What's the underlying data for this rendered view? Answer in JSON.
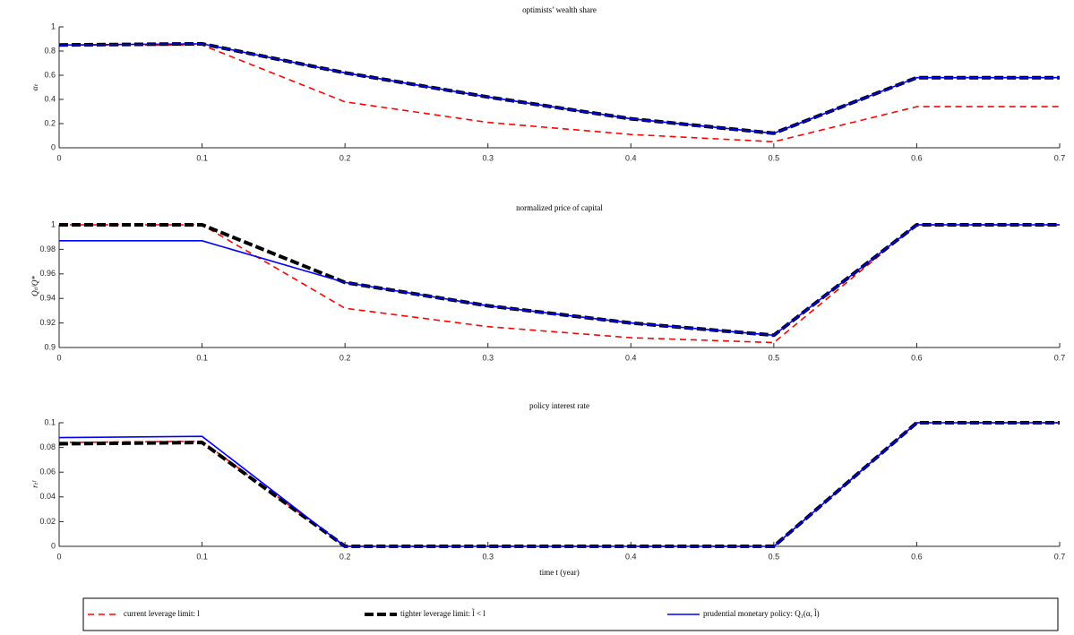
{
  "chart_data": [
    {
      "type": "line",
      "title": "optimists’ wealth share",
      "ylabel": "αₜ",
      "x": [
        0,
        0.1,
        0.2,
        0.3,
        0.4,
        0.5,
        0.6,
        0.7
      ],
      "xlim": [
        0,
        0.7
      ],
      "xticks": [
        0,
        0.1,
        0.2,
        0.3,
        0.4,
        0.5,
        0.6,
        0.7
      ],
      "ylim": [
        0,
        1
      ],
      "yticks": [
        0,
        0.2,
        0.4,
        0.6,
        0.8,
        1
      ],
      "series": [
        {
          "name": "current leverage limit: l",
          "color": "#ff0000",
          "linestyle": "dashed",
          "linewidth": 1.6,
          "values": [
            0.85,
            0.85,
            0.38,
            0.21,
            0.11,
            0.05,
            0.34,
            0.34
          ]
        },
        {
          "name": "tighter leverage limit: l̃ < l",
          "color": "#000000",
          "linestyle": "dashed",
          "linewidth": 4,
          "values": [
            0.85,
            0.86,
            0.62,
            0.42,
            0.24,
            0.12,
            0.58,
            0.58
          ]
        },
        {
          "name": "prudential monetary policy: Q₁(α, l̃)",
          "color": "#0000ff",
          "linestyle": "solid",
          "linewidth": 1.6,
          "values": [
            0.85,
            0.86,
            0.62,
            0.42,
            0.24,
            0.12,
            0.58,
            0.58
          ]
        }
      ]
    },
    {
      "type": "line",
      "title": "normalized price of capital",
      "ylabel": "Qₜ/Q*",
      "x": [
        0,
        0.1,
        0.2,
        0.3,
        0.4,
        0.5,
        0.6,
        0.7
      ],
      "xlim": [
        0,
        0.7
      ],
      "xticks": [
        0,
        0.1,
        0.2,
        0.3,
        0.4,
        0.5,
        0.6,
        0.7
      ],
      "ylim": [
        0.9,
        1
      ],
      "yticks": [
        0.9,
        0.92,
        0.94,
        0.96,
        0.98,
        1
      ],
      "series": [
        {
          "name": "current leverage limit: l",
          "color": "#ff0000",
          "linestyle": "dashed",
          "linewidth": 1.6,
          "values": [
            1,
            1,
            0.932,
            0.917,
            0.908,
            0.904,
            1,
            1
          ]
        },
        {
          "name": "tighter leverage limit: l̃ < l",
          "color": "#000000",
          "linestyle": "dashed",
          "linewidth": 4,
          "values": [
            1,
            1,
            0.953,
            0.934,
            0.92,
            0.91,
            1,
            1
          ]
        },
        {
          "name": "prudential monetary policy: Q₁(α, l̃)",
          "color": "#0000ff",
          "linestyle": "solid",
          "linewidth": 1.6,
          "values": [
            0.987,
            0.987,
            0.953,
            0.934,
            0.92,
            0.91,
            1,
            1
          ]
        }
      ]
    },
    {
      "type": "line",
      "title": "policy interest rate",
      "ylabel": "rₜᶠ",
      "xlabel": "time t (year)",
      "x": [
        0,
        0.1,
        0.2,
        0.3,
        0.4,
        0.5,
        0.6,
        0.7
      ],
      "xlim": [
        0,
        0.7
      ],
      "xticks": [
        0,
        0.1,
        0.2,
        0.3,
        0.4,
        0.5,
        0.6,
        0.7
      ],
      "ylim": [
        0,
        0.1
      ],
      "yticks": [
        0,
        0.02,
        0.04,
        0.06,
        0.08,
        0.1
      ],
      "series": [
        {
          "name": "current leverage limit: l",
          "color": "#ff0000",
          "linestyle": "dashed",
          "linewidth": 1.6,
          "values": [
            0.084,
            0.085,
            0,
            0,
            0,
            0,
            0.1,
            0.1
          ]
        },
        {
          "name": "tighter leverage limit: l̃ < l",
          "color": "#000000",
          "linestyle": "dashed",
          "linewidth": 4,
          "values": [
            0.083,
            0.084,
            0,
            0,
            0,
            0,
            0.1,
            0.1
          ]
        },
        {
          "name": "prudential monetary policy: Q₁(α, l̃)",
          "color": "#0000ff",
          "linestyle": "solid",
          "linewidth": 1.6,
          "values": [
            0.088,
            0.089,
            0,
            0,
            0,
            0,
            0.1,
            0.1
          ]
        }
      ]
    }
  ]
}
